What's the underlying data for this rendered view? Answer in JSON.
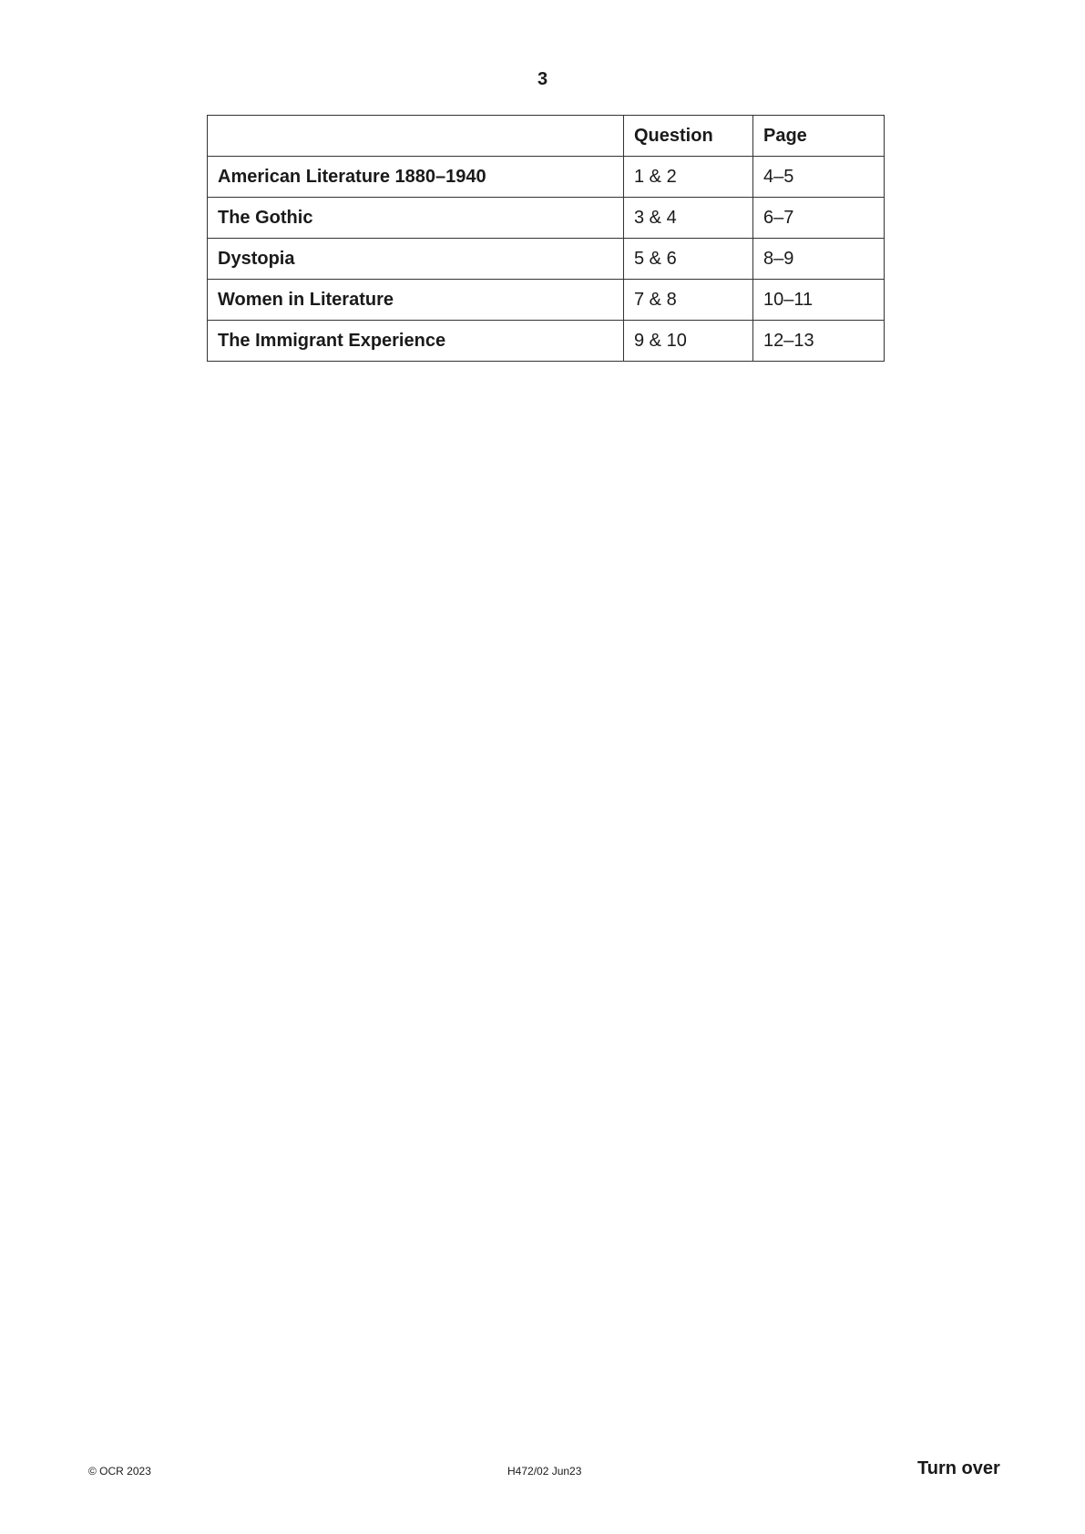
{
  "page_number": "3",
  "table": {
    "headers": [
      "",
      "Question",
      "Page"
    ],
    "rows": [
      [
        "American Literature 1880–1940",
        "1 & 2",
        "4–5"
      ],
      [
        "The Gothic",
        "3 & 4",
        "6–7"
      ],
      [
        "Dystopia",
        "5 & 6",
        "8–9"
      ],
      [
        "Women in Literature",
        "7 & 8",
        "10–11"
      ],
      [
        "The Immigrant Experience",
        "9 & 10",
        "12–13"
      ]
    ]
  },
  "footer": {
    "copyright": "© OCR 2023",
    "code": "H472/02 Jun23",
    "turn_over": "Turn over"
  }
}
